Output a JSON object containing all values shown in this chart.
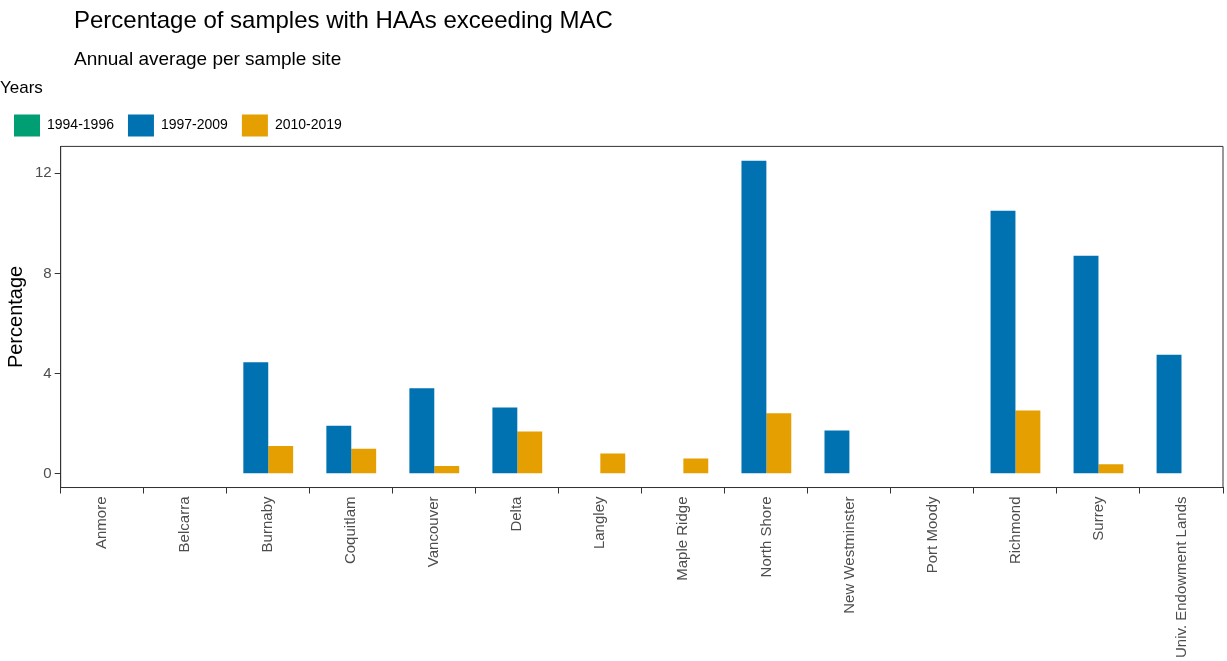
{
  "chart_data": {
    "type": "bar",
    "title": "Percentage of samples with HAAs exceeding MAC",
    "subtitle": "Annual average per sample site",
    "ylabel": "Percentage",
    "legend_title": "Years",
    "categories": [
      "Anmore",
      "Belcarra",
      "Burnaby",
      "Coquitlam",
      "Vancouver",
      "Delta",
      "Langley",
      "Maple Ridge",
      "North Shore",
      "New Westminster",
      "Port Moody",
      "Richmond",
      "Surrey",
      "Univ. Endowment Lands"
    ],
    "series": [
      {
        "name": "1994-1996",
        "color": "#009e73",
        "values": [
          null,
          null,
          null,
          null,
          null,
          null,
          null,
          null,
          null,
          null,
          null,
          null,
          null,
          null
        ]
      },
      {
        "name": "1997-2009",
        "color": "#0072b2",
        "values": [
          null,
          null,
          4.45,
          1.92,
          3.41,
          2.65,
          null,
          null,
          12.5,
          1.73,
          null,
          10.5,
          8.7,
          4.75
        ]
      },
      {
        "name": "2010-2019",
        "color": "#e69f00",
        "values": [
          null,
          null,
          1.11,
          1.0,
          0.31,
          1.69,
          0.81,
          0.61,
          2.42,
          null,
          null,
          2.53,
          0.38,
          null
        ]
      }
    ],
    "ylim": [
      -0.55,
      13.07
    ],
    "yticks": [
      0,
      4,
      8,
      12
    ],
    "grid": false,
    "legend": "top left"
  }
}
